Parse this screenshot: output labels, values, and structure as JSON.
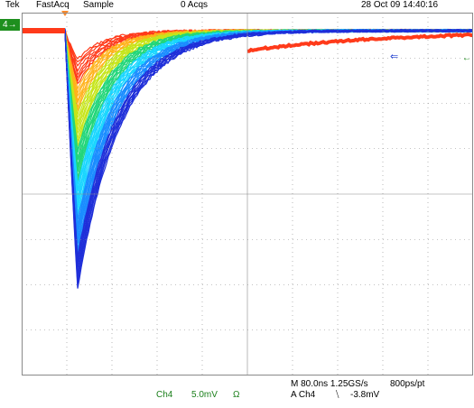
{
  "header": {
    "brand": "Tek",
    "mode": "FastAcq",
    "acq_type": "Sample",
    "acq_count": "0 Acqs",
    "datetime": "28 Oct 09 14:40:16"
  },
  "channel_marker": {
    "label": "4",
    "arrow": "→"
  },
  "trigger_level_marker": "⇐",
  "right_marker": "←",
  "footer": {
    "channel": "Ch4",
    "volts_per_div": "5.0mV",
    "coupling": "Ω",
    "timebase": "M 80.0ns 1.25GS/s",
    "record": "800ps/pt",
    "trigger_source": "A  Ch4",
    "trigger_slope": "⧹",
    "trigger_level": "-3.8mV"
  },
  "colors": {
    "background": "#ffffff",
    "grid": "#8a8a8a",
    "channel": "#1e8f1e",
    "trigger": "#ff8a2a",
    "persistence": [
      "#1f2fd9",
      "#1a8dff",
      "#19d6ff",
      "#22d67a",
      "#c6e51a",
      "#ffb21a",
      "#ff3a1a"
    ]
  }
}
